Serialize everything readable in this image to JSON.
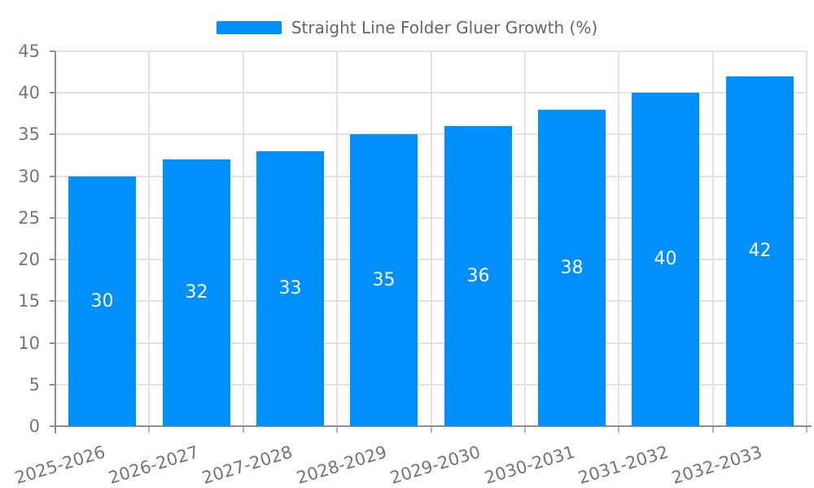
{
  "chart_data": {
    "type": "bar",
    "title": "Straight Line Folder Gluer Growth (%)",
    "series_name": "Straight Line Folder Gluer Growth (%)",
    "categories": [
      "2025-2026",
      "2026-2027",
      "2027-2028",
      "2028-2029",
      "2029-2030",
      "2030-2031",
      "2031-2032",
      "2032-2033"
    ],
    "values": [
      30,
      32,
      33,
      35,
      36,
      38,
      40,
      42
    ],
    "value_labels": [
      "30",
      "32",
      "33",
      "35",
      "36",
      "38",
      "40",
      "42"
    ],
    "xlabel": "",
    "ylabel": "",
    "ylim": [
      0,
      45
    ],
    "y_tick_step": 5,
    "y_tick_labels": [
      "0",
      "5",
      "10",
      "15",
      "20",
      "25",
      "30",
      "35",
      "40",
      "45"
    ],
    "grid": true,
    "legend_position": "top",
    "colors": {
      "bar": "#008FFB",
      "value_label": "#FFFFFF",
      "axis_label": "#757575",
      "legend_text": "#666666",
      "gridline": "#E2E2E2",
      "axis_line": "#8F8F8F",
      "x_tick": "#B6B6B6"
    }
  }
}
